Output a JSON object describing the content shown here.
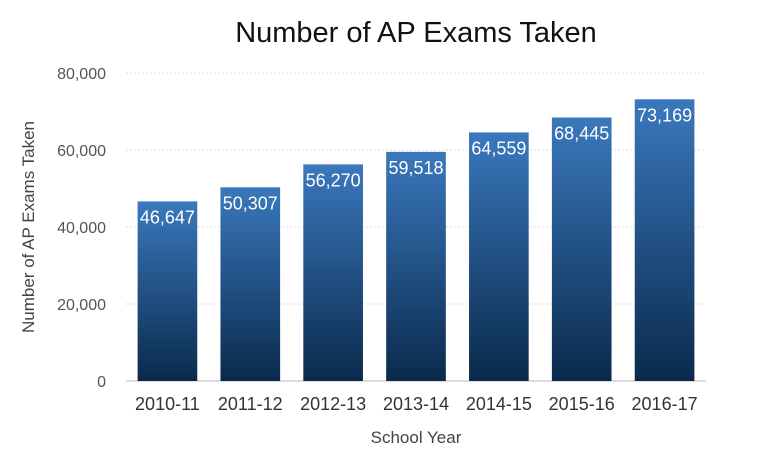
{
  "chart_data": {
    "type": "bar",
    "title": "Number of AP Exams Taken",
    "xlabel": "School Year",
    "ylabel": "Number of AP Exams Taken",
    "categories": [
      "2010-11",
      "2011-12",
      "2012-13",
      "2013-14",
      "2014-15",
      "2015-16",
      "2016-17"
    ],
    "values": [
      46647,
      50307,
      56270,
      59518,
      64559,
      68445,
      73169
    ],
    "data_labels": [
      "46,647",
      "50,307",
      "56,270",
      "59,518",
      "64,559",
      "68,445",
      "73,169"
    ],
    "ylim": [
      0,
      80000
    ],
    "yticks": [
      0,
      20000,
      40000,
      60000,
      80000
    ],
    "ytick_labels": [
      "0",
      "20,000",
      "40,000",
      "60,000",
      "80,000"
    ],
    "grid": true,
    "legend": "none",
    "colors": {
      "bar_top": "#3a78bd",
      "bar_bottom": "#0a2a4c",
      "grid": "#dddddd",
      "data_label": "#ffffff"
    }
  }
}
